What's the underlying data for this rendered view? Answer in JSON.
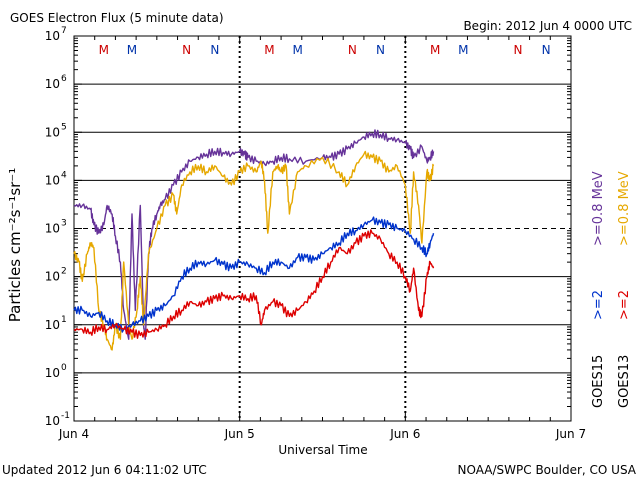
{
  "header": {
    "title": "GOES Electron Flux (5 minute data)",
    "begin": "Begin: 2012 Jun 4 0000 UTC"
  },
  "footer": {
    "updated": "Updated 2012 Jun  6 04:11:02 UTC",
    "credit": "NOAA/SWPC Boulder, CO USA"
  },
  "chart_data": {
    "type": "line",
    "title": "GOES Electron Flux (5 minute data)",
    "xlabel": "Universal Time",
    "ylabel": "Particles cm⁻²s⁻¹sr⁻¹",
    "yscale": "log",
    "ylim": [
      0.1,
      10000000
    ],
    "xlim": [
      0,
      3
    ],
    "grid": true,
    "y_ticks": [
      {
        "exp": "-1",
        "value": 0.1
      },
      {
        "exp": "0",
        "value": 1
      },
      {
        "exp": "1",
        "value": 10
      },
      {
        "exp": "2",
        "value": 100
      },
      {
        "exp": "3",
        "value": 1000
      },
      {
        "exp": "4",
        "value": 10000
      },
      {
        "exp": "5",
        "value": 100000
      },
      {
        "exp": "6",
        "value": 1000000
      },
      {
        "exp": "7",
        "value": 10000000
      }
    ],
    "x_ticks": [
      {
        "label": "Jun 4",
        "day": 0
      },
      {
        "label": "Jun 5",
        "day": 1
      },
      {
        "label": "Jun 6",
        "day": 2
      },
      {
        "label": "Jun 7",
        "day": 3
      }
    ],
    "threshold_line": 1000,
    "markers": [
      {
        "label": "M",
        "day": 0.18,
        "color": "#cc0000"
      },
      {
        "label": "M",
        "day": 0.35,
        "color": "#0033aa"
      },
      {
        "label": "N",
        "day": 0.68,
        "color": "#cc0000"
      },
      {
        "label": "N",
        "day": 0.85,
        "color": "#0033aa"
      },
      {
        "label": "M",
        "day": 1.18,
        "color": "#cc0000"
      },
      {
        "label": "M",
        "day": 1.35,
        "color": "#0033aa"
      },
      {
        "label": "N",
        "day": 1.68,
        "color": "#cc0000"
      },
      {
        "label": "N",
        "day": 1.85,
        "color": "#0033aa"
      },
      {
        "label": "M",
        "day": 2.18,
        "color": "#cc0000"
      },
      {
        "label": "M",
        "day": 2.35,
        "color": "#0033aa"
      },
      {
        "label": "N",
        "day": 2.68,
        "color": "#cc0000"
      },
      {
        "label": "N",
        "day": 2.85,
        "color": "#0033aa"
      }
    ],
    "legend": [
      {
        "sat": "GOES15",
        "energy": ">=0.8 MeV",
        "energy_color": "#663399",
        "low": ">=2",
        "low_color": "#0033cc"
      },
      {
        "sat": "GOES13",
        "energy": ">=0.8 MeV",
        "energy_color": "#e6a800",
        "low": ">=2",
        "low_color": "#dd0000"
      }
    ],
    "series": [
      {
        "name": "GOES15 >=0.8 MeV",
        "color": "#663399",
        "x": [
          0,
          0.05,
          0.1,
          0.12,
          0.15,
          0.18,
          0.2,
          0.23,
          0.25,
          0.28,
          0.3,
          0.33,
          0.35,
          0.37,
          0.4,
          0.42,
          0.43,
          0.45,
          0.47,
          0.5,
          0.52,
          0.55,
          0.6,
          0.65,
          0.7,
          0.75,
          0.8,
          0.85,
          0.9,
          0.95,
          1.0,
          1.03,
          1.05,
          1.1,
          1.15,
          1.2,
          1.25,
          1.3,
          1.4,
          1.5,
          1.55,
          1.6,
          1.65,
          1.7,
          1.75,
          1.8,
          1.85,
          1.9,
          1.95,
          2.0,
          2.03,
          2.05,
          2.1,
          2.13,
          2.15,
          2.17
        ],
        "y": [
          3000,
          3000,
          2500,
          1200,
          800,
          1200,
          3000,
          2000,
          700,
          200,
          20,
          5,
          2000,
          20,
          3000,
          10,
          5,
          300,
          1000,
          2000,
          3000,
          4000,
          8000,
          15000,
          25000,
          30000,
          35000,
          40000,
          38000,
          35000,
          40000,
          35000,
          30000,
          25000,
          22000,
          25000,
          30000,
          28000,
          25000,
          30000,
          30000,
          35000,
          45000,
          60000,
          80000,
          95000,
          90000,
          75000,
          70000,
          60000,
          45000,
          30000,
          50000,
          25000,
          30000,
          40000
        ]
      },
      {
        "name": "GOES13 >=0.8 MeV",
        "color": "#e6a800",
        "x": [
          0,
          0.03,
          0.05,
          0.08,
          0.1,
          0.12,
          0.15,
          0.18,
          0.2,
          0.23,
          0.25,
          0.28,
          0.3,
          0.33,
          0.35,
          0.38,
          0.4,
          0.42,
          0.45,
          0.5,
          0.55,
          0.6,
          0.62,
          0.65,
          0.7,
          0.75,
          0.8,
          0.85,
          0.9,
          0.95,
          1.0,
          1.05,
          1.1,
          1.13,
          1.15,
          1.17,
          1.2,
          1.23,
          1.25,
          1.28,
          1.3,
          1.35,
          1.4,
          1.5,
          1.6,
          1.65,
          1.7,
          1.75,
          1.8,
          1.85,
          1.9,
          1.95,
          2.0,
          2.03,
          2.05,
          2.08,
          2.1,
          2.13,
          2.15,
          2.17
        ],
        "y": [
          300,
          200,
          80,
          300,
          500,
          400,
          20,
          10,
          5,
          3,
          10,
          5,
          200,
          10,
          5,
          20,
          100,
          10,
          300,
          1000,
          3000,
          5000,
          2000,
          8000,
          15000,
          20000,
          15000,
          20000,
          12000,
          8000,
          15000,
          20000,
          15000,
          25000,
          10000,
          800,
          15000,
          20000,
          15000,
          20000,
          2000,
          15000,
          20000,
          30000,
          15000,
          8000,
          20000,
          35000,
          30000,
          25000,
          15000,
          20000,
          8000,
          800,
          15000,
          3000,
          500,
          15000,
          10000,
          20000
        ]
      },
      {
        "name": "GOES15 >=2 MeV",
        "color": "#0033cc",
        "x": [
          0,
          0.05,
          0.1,
          0.15,
          0.2,
          0.25,
          0.3,
          0.35,
          0.4,
          0.45,
          0.5,
          0.55,
          0.6,
          0.65,
          0.7,
          0.75,
          0.8,
          0.85,
          0.9,
          0.95,
          1.0,
          1.05,
          1.1,
          1.15,
          1.2,
          1.25,
          1.3,
          1.35,
          1.4,
          1.45,
          1.5,
          1.55,
          1.6,
          1.65,
          1.7,
          1.75,
          1.8,
          1.85,
          1.9,
          1.95,
          2.0,
          2.05,
          2.1,
          2.13,
          2.15,
          2.17
        ],
        "y": [
          20,
          20,
          15,
          18,
          12,
          10,
          8,
          10,
          12,
          15,
          20,
          25,
          40,
          100,
          150,
          200,
          180,
          220,
          180,
          150,
          200,
          180,
          150,
          120,
          200,
          200,
          150,
          250,
          250,
          220,
          300,
          400,
          500,
          800,
          900,
          1200,
          1500,
          1300,
          1200,
          1000,
          900,
          600,
          400,
          300,
          500,
          800
        ]
      },
      {
        "name": "GOES13 >=2 MeV",
        "color": "#dd0000",
        "x": [
          0,
          0.05,
          0.1,
          0.15,
          0.2,
          0.25,
          0.3,
          0.35,
          0.4,
          0.45,
          0.5,
          0.55,
          0.6,
          0.65,
          0.7,
          0.75,
          0.8,
          0.85,
          0.9,
          0.95,
          1.0,
          1.05,
          1.1,
          1.13,
          1.15,
          1.2,
          1.25,
          1.3,
          1.35,
          1.4,
          1.45,
          1.5,
          1.55,
          1.6,
          1.65,
          1.7,
          1.75,
          1.8,
          1.85,
          1.9,
          1.95,
          2.0,
          2.03,
          2.05,
          2.08,
          2.1,
          2.13,
          2.15,
          2.17
        ],
        "y": [
          8,
          8,
          7,
          9,
          8,
          10,
          8,
          7,
          6,
          7,
          8,
          10,
          15,
          20,
          30,
          25,
          30,
          35,
          40,
          35,
          40,
          35,
          40,
          10,
          20,
          30,
          25,
          15,
          20,
          30,
          50,
          100,
          200,
          400,
          300,
          500,
          700,
          800,
          600,
          300,
          200,
          100,
          50,
          150,
          20,
          15,
          100,
          200,
          150
        ]
      }
    ]
  }
}
